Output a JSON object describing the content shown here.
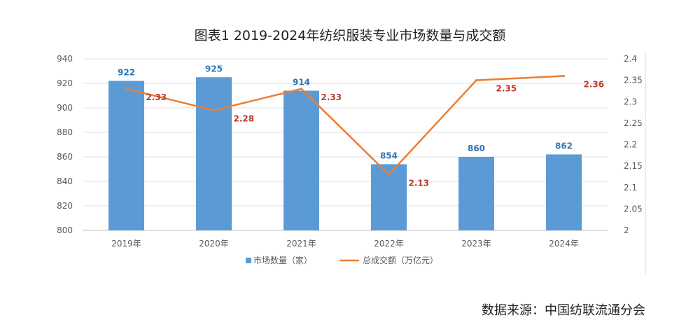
{
  "chart_data": {
    "type": "bar",
    "title": "图表1 2019-2024年纺织服装专业市场数量与成交额",
    "categories": [
      "2019年",
      "2020年",
      "2021年",
      "2022年",
      "2023年",
      "2024年"
    ],
    "series": [
      {
        "name": "市场数量（家）",
        "type": "bar",
        "axis": "left",
        "color": "#5b9bd5",
        "values": [
          922,
          925,
          914,
          854,
          860,
          862
        ],
        "labels": [
          "922",
          "925",
          "914",
          "854",
          "860",
          "862"
        ]
      },
      {
        "name": "总成交额（万亿元）",
        "type": "line",
        "axis": "right",
        "color": "#ed7d31",
        "values": [
          2.33,
          2.28,
          2.33,
          2.13,
          2.35,
          2.36
        ],
        "labels": [
          "2.33",
          "2.28",
          "2.33",
          "2.13",
          "2.35",
          "2.36"
        ]
      }
    ],
    "y_left": {
      "min": 800,
      "max": 940,
      "ticks": [
        "800",
        "820",
        "840",
        "860",
        "880",
        "900",
        "920",
        "940"
      ]
    },
    "y_right": {
      "min": 2.0,
      "max": 2.4,
      "ticks": [
        "2",
        "2.05",
        "2.1",
        "2.15",
        "2.2",
        "2.25",
        "2.3",
        "2.35",
        "2.4"
      ]
    },
    "grid": true,
    "legend_position": "bottom"
  },
  "source": "数据来源：中国纺联流通分会"
}
